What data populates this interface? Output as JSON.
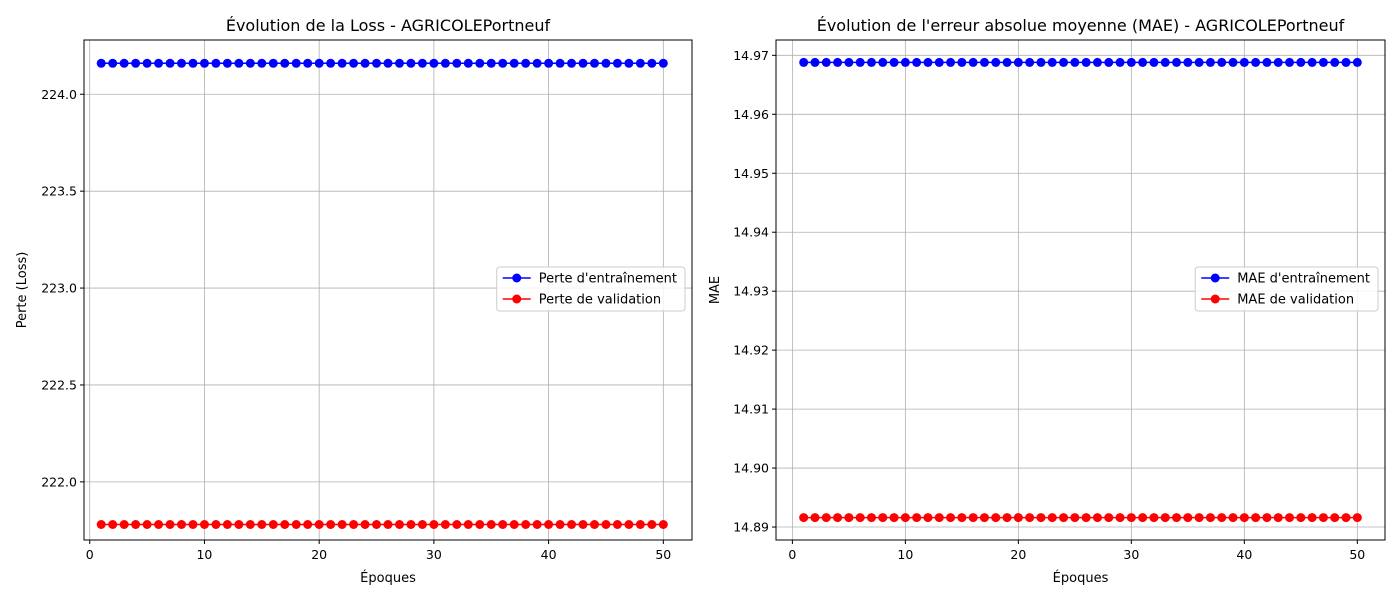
{
  "chart_data": [
    {
      "type": "line",
      "title": "Évolution de la Loss - AGRICOLEPortneuf",
      "xlabel": "Époques",
      "ylabel": "Perte (Loss)",
      "xlim": [
        -0.5,
        52.5
      ],
      "ylim": [
        221.7,
        224.28
      ],
      "xticks": [
        0,
        10,
        20,
        30,
        40,
        50
      ],
      "yticks": [
        222.0,
        222.5,
        223.0,
        223.5,
        224.0
      ],
      "ytick_labels": [
        "222.0",
        "222.5",
        "223.0",
        "223.5",
        "224.0"
      ],
      "grid": true,
      "legend_position": "center-right",
      "x_range": [
        1,
        50
      ],
      "series": [
        {
          "name": "Perte d'entraînement",
          "color": "#0000ff",
          "marker": "circle",
          "constant_value": 224.16
        },
        {
          "name": "Perte de validation",
          "color": "#ff0000",
          "marker": "circle",
          "constant_value": 221.78
        }
      ]
    },
    {
      "type": "line",
      "title": "Évolution de l'erreur absolue moyenne (MAE) - AGRICOLEPortneuf",
      "xlabel": "Époques",
      "ylabel": "MAE",
      "xlim": [
        -1.45,
        52.45
      ],
      "ylim": [
        14.8878,
        14.9726
      ],
      "xticks": [
        0,
        10,
        20,
        30,
        40,
        50
      ],
      "yticks": [
        14.89,
        14.9,
        14.91,
        14.92,
        14.93,
        14.94,
        14.95,
        14.96,
        14.97
      ],
      "ytick_labels": [
        "14.89",
        "14.90",
        "14.91",
        "14.92",
        "14.93",
        "14.94",
        "14.95",
        "14.96",
        "14.97"
      ],
      "grid": true,
      "legend_position": "center-right",
      "x_range": [
        1,
        50
      ],
      "series": [
        {
          "name": "MAE d'entraînement",
          "color": "#0000ff",
          "marker": "circle",
          "constant_value": 14.9688
        },
        {
          "name": "MAE de validation",
          "color": "#ff0000",
          "marker": "circle",
          "constant_value": 14.8916
        }
      ]
    }
  ]
}
